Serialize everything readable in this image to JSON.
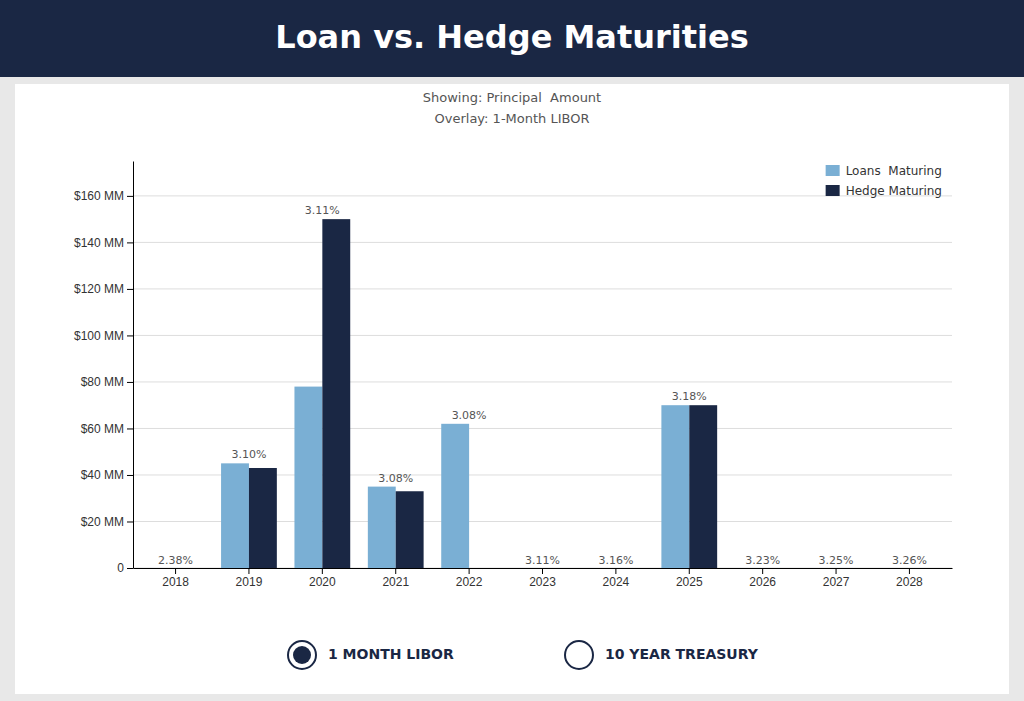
{
  "chart_data": {
    "type": "bar",
    "title": "Loan vs. Hedge Maturities",
    "subtitle": [
      "Showing: Principal  Amount",
      "Overlay: 1-Month LIBOR"
    ],
    "categories": [
      "2018",
      "2019",
      "2020",
      "2021",
      "2022",
      "2023",
      "2024",
      "2025",
      "2026",
      "2027",
      "2028"
    ],
    "series": [
      {
        "name": "Loans  Maturing",
        "color": "#7aafd4",
        "values": [
          0,
          45,
          78,
          35,
          62,
          0,
          0,
          70,
          0,
          0,
          0
        ]
      },
      {
        "name": "Hedge Maturing",
        "color": "#1a2744",
        "values": [
          0,
          43,
          150,
          33,
          0,
          0,
          0,
          70,
          0,
          0,
          0
        ]
      }
    ],
    "ylim": [
      0,
      175
    ],
    "yticks": [
      0,
      {
        "value": 20,
        "label": "$20 MM"
      },
      {
        "value": 40,
        "label": "$40 MM"
      },
      {
        "value": 60,
        "label": "$60 MM"
      },
      {
        "value": 80,
        "label": "$80 MM"
      },
      {
        "value": 100,
        "label": "$100 MM"
      },
      {
        "value": 120,
        "label": "$120 MM"
      },
      {
        "value": 140,
        "label": "$140 MM"
      },
      {
        "value": 160,
        "label": "$160 MM"
      }
    ],
    "grid": true,
    "legend": "upper right",
    "annotations": [
      {
        "text": "2.38%",
        "x": "2018"
      },
      {
        "text": "3.10%",
        "x": "2019"
      },
      {
        "text": "3.11%",
        "x": "2020"
      },
      {
        "text": "3.08%",
        "x": "2021"
      },
      {
        "text": "3.08%",
        "x": "2022"
      },
      {
        "text": "3.11%",
        "x": "2023"
      },
      {
        "text": "3.16%",
        "x": "2024"
      },
      {
        "text": "3.18%",
        "x": "2025"
      },
      {
        "text": "3.23%",
        "x": "2026"
      },
      {
        "text": "3.25%",
        "x": "2027"
      },
      {
        "text": "3.26%",
        "x": "2028"
      },
      {
        "text": "1 MONTH LIBOR"
      },
      {
        "text": "10 YEAR TREASURY"
      }
    ]
  }
}
